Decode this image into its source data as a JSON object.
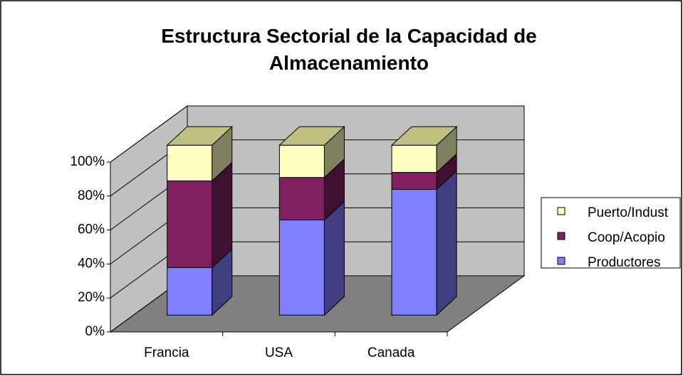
{
  "chart_data": {
    "type": "bar3d_stacked",
    "title": "Estructura Sectorial de la Capacidad de Almacenamiento",
    "categories": [
      "Francia",
      "USA",
      "Canada"
    ],
    "series": [
      {
        "name": "Productores",
        "color": "#8080ff",
        "side": "#3f3f80",
        "values": [
          28,
          56,
          74
        ]
      },
      {
        "name": "Coop/Acopio",
        "color": "#802060",
        "side": "#401030",
        "values": [
          51,
          25,
          10
        ]
      },
      {
        "name": "Puerto/Indust",
        "color": "#ffffc0",
        "side": "#808060",
        "top": "#c0c080",
        "values": [
          21,
          19,
          16
        ]
      }
    ],
    "ylim": [
      0,
      100
    ],
    "yticks": [
      {
        "value": 0,
        "label": "0%"
      },
      {
        "value": 20,
        "label": "20%"
      },
      {
        "value": 40,
        "label": "40%"
      },
      {
        "value": 60,
        "label": "60%"
      },
      {
        "value": 80,
        "label": "80%"
      },
      {
        "value": 100,
        "label": "100%"
      }
    ],
    "grid": true,
    "legend": "right"
  }
}
